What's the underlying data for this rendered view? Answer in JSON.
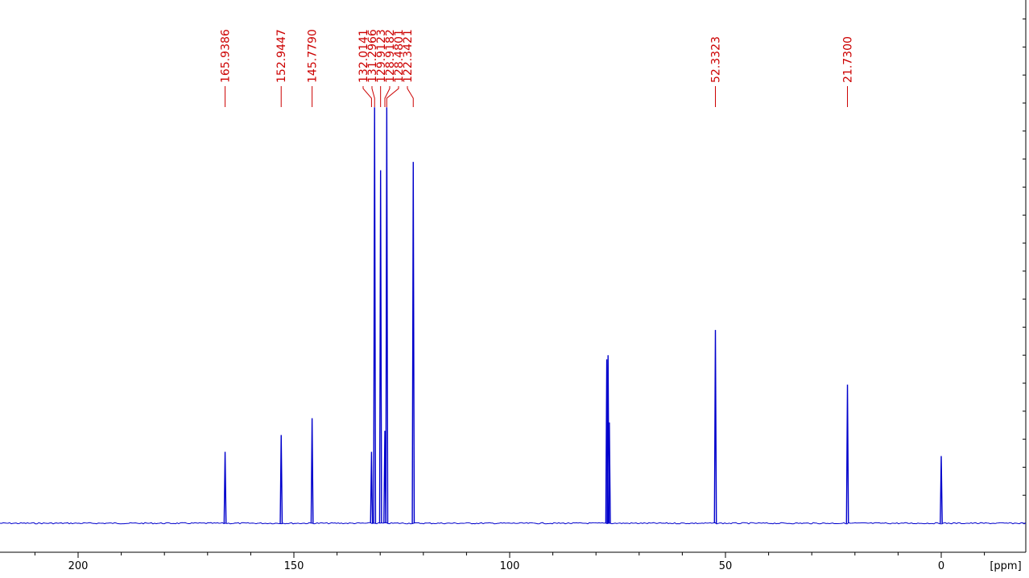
{
  "chart_data": {
    "type": "line",
    "xlabel": "[ppm]",
    "x_reversed": true,
    "xlim": [
      213,
      -19
    ],
    "ylim": [
      0,
      1.0
    ],
    "x_ticks": [
      200,
      150,
      100,
      50,
      0
    ],
    "x_tick_labels": [
      "200",
      "150",
      "100",
      "50",
      "0"
    ],
    "x_minor_step": 10,
    "right_axis_minor_ticks": true,
    "grid": false,
    "colors": {
      "spectrum": "#0000cc",
      "labels": "#cc0000",
      "axis": "#000000"
    },
    "peak_labels": [
      {
        "label": "165.9386",
        "ppm": 165.9386
      },
      {
        "label": "152.9447",
        "ppm": 152.9447
      },
      {
        "label": "145.7790",
        "ppm": 145.779
      },
      {
        "label": "132.0141",
        "ppm": 132.0141
      },
      {
        "label": "131.2966",
        "ppm": 131.2966
      },
      {
        "label": "129.9123",
        "ppm": 129.9123
      },
      {
        "label": "128.9182",
        "ppm": 128.9182
      },
      {
        "label": "128.4801",
        "ppm": 128.4801
      },
      {
        "label": "122.3421",
        "ppm": 122.3421
      },
      {
        "label": "52.3323",
        "ppm": 52.3323
      },
      {
        "label": "21.7300",
        "ppm": 21.73
      }
    ],
    "peaks": [
      {
        "ppm": 165.94,
        "height": 0.17
      },
      {
        "ppm": 152.94,
        "height": 0.21
      },
      {
        "ppm": 145.78,
        "height": 0.25
      },
      {
        "ppm": 132.01,
        "height": 0.17
      },
      {
        "ppm": 131.3,
        "height": 0.99
      },
      {
        "ppm": 129.91,
        "height": 0.84
      },
      {
        "ppm": 128.92,
        "height": 0.22
      },
      {
        "ppm": 128.48,
        "height": 0.99
      },
      {
        "ppm": 122.34,
        "height": 0.86
      },
      {
        "ppm": 77.5,
        "height": 0.39
      },
      {
        "ppm": 77.2,
        "height": 0.4
      },
      {
        "ppm": 76.9,
        "height": 0.24
      },
      {
        "ppm": 52.33,
        "height": 0.46
      },
      {
        "ppm": 21.73,
        "height": 0.33
      },
      {
        "ppm": 0.0,
        "height": 0.16
      }
    ]
  }
}
